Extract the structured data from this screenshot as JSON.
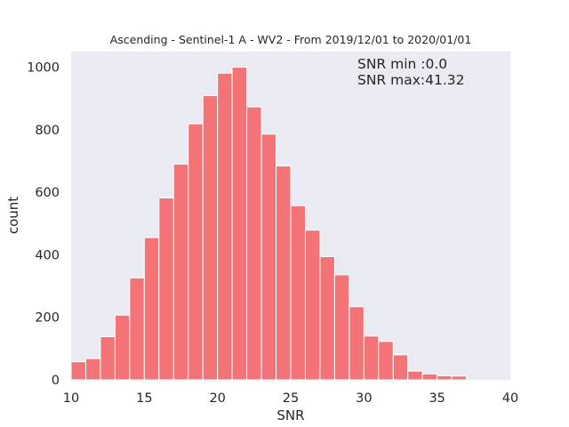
{
  "chart_data": {
    "type": "bar",
    "title": "Ascending - Sentinel-1 A - WV2 - From 2019/12/01 to 2020/01/01",
    "xlabel": "SNR",
    "ylabel": "count",
    "xlim": [
      10,
      40
    ],
    "ylim": [
      0,
      1050
    ],
    "xticks": [
      "10",
      "15",
      "20",
      "25",
      "30",
      "35",
      "40"
    ],
    "yticks": [
      "0",
      "200",
      "400",
      "600",
      "800",
      "1000"
    ],
    "grid": false,
    "annotations": [
      "SNR min :0.0",
      "SNR max:41.32"
    ],
    "bins": [
      {
        "x0": 10.0,
        "x1": 11.0,
        "value": 58
      },
      {
        "x0": 11.0,
        "x1": 12.0,
        "value": 68
      },
      {
        "x0": 12.0,
        "x1": 13.0,
        "value": 138
      },
      {
        "x0": 13.0,
        "x1": 14.0,
        "value": 207
      },
      {
        "x0": 14.0,
        "x1": 15.0,
        "value": 326
      },
      {
        "x0": 15.0,
        "x1": 16.0,
        "value": 455
      },
      {
        "x0": 16.0,
        "x1": 17.0,
        "value": 582
      },
      {
        "x0": 17.0,
        "x1": 18.0,
        "value": 690
      },
      {
        "x0": 18.0,
        "x1": 19.0,
        "value": 819
      },
      {
        "x0": 19.0,
        "x1": 20.0,
        "value": 909
      },
      {
        "x0": 20.0,
        "x1": 21.0,
        "value": 981
      },
      {
        "x0": 21.0,
        "x1": 22.0,
        "value": 1000
      },
      {
        "x0": 22.0,
        "x1": 23.0,
        "value": 873
      },
      {
        "x0": 23.0,
        "x1": 24.0,
        "value": 786
      },
      {
        "x0": 24.0,
        "x1": 25.0,
        "value": 684
      },
      {
        "x0": 25.0,
        "x1": 26.0,
        "value": 557
      },
      {
        "x0": 26.0,
        "x1": 27.0,
        "value": 479
      },
      {
        "x0": 27.0,
        "x1": 28.0,
        "value": 394
      },
      {
        "x0": 28.0,
        "x1": 29.0,
        "value": 336
      },
      {
        "x0": 29.0,
        "x1": 30.0,
        "value": 234
      },
      {
        "x0": 30.0,
        "x1": 31.0,
        "value": 140
      },
      {
        "x0": 31.0,
        "x1": 32.0,
        "value": 123
      },
      {
        "x0": 32.0,
        "x1": 33.0,
        "value": 80
      },
      {
        "x0": 33.0,
        "x1": 34.0,
        "value": 28
      },
      {
        "x0": 34.0,
        "x1": 35.0,
        "value": 19
      },
      {
        "x0": 35.0,
        "x1": 36.0,
        "value": 13
      },
      {
        "x0": 36.0,
        "x1": 37.0,
        "value": 12
      }
    ],
    "colors": {
      "bar": "#f47376",
      "plot_background": "#eaeaf2",
      "figure_background": "#ffffff"
    }
  }
}
